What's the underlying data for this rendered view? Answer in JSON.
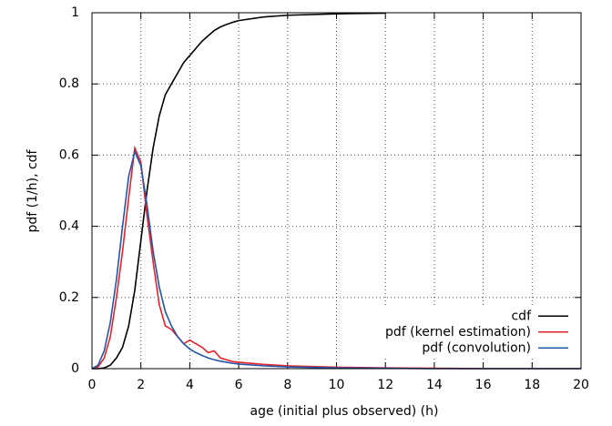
{
  "chart_data": {
    "type": "line",
    "xlabel": "age (initial plus observed) (h)",
    "ylabel": "pdf (1/h), cdf",
    "x": [
      0,
      0.25,
      0.5,
      0.75,
      1,
      1.25,
      1.5,
      1.75,
      2,
      2.25,
      2.5,
      2.75,
      3,
      3.25,
      3.5,
      3.75,
      4,
      4.25,
      4.5,
      4.75,
      5,
      5.25,
      5.5,
      5.75,
      6,
      7,
      8,
      10,
      12,
      14,
      16,
      18,
      20
    ],
    "series": [
      {
        "name": "cdf",
        "color": "#000000",
        "values": [
          0,
          0,
          0.002,
          0.01,
          0.03,
          0.06,
          0.12,
          0.22,
          0.36,
          0.5,
          0.62,
          0.71,
          0.77,
          0.8,
          0.83,
          0.86,
          0.88,
          0.9,
          0.92,
          0.935,
          0.95,
          0.96,
          0.967,
          0.973,
          0.978,
          0.988,
          0.993,
          0.997,
          0.999,
          null,
          null,
          null,
          null
        ]
      },
      {
        "name": "pdf (kernel estimation)",
        "color": "#e8212b",
        "values": [
          0,
          0.005,
          0.03,
          0.09,
          0.2,
          0.33,
          0.48,
          0.62,
          0.58,
          0.43,
          0.3,
          0.18,
          0.12,
          0.11,
          0.09,
          0.07,
          0.08,
          0.07,
          0.06,
          0.045,
          0.05,
          0.03,
          0.025,
          0.02,
          0.018,
          0.012,
          0.008,
          0.004,
          0.002,
          0.001,
          0,
          0,
          0
        ]
      },
      {
        "name": "pdf (convolution)",
        "color": "#2355a8",
        "values": [
          0,
          0.01,
          0.05,
          0.13,
          0.25,
          0.4,
          0.54,
          0.61,
          0.57,
          0.46,
          0.33,
          0.23,
          0.16,
          0.12,
          0.09,
          0.07,
          0.055,
          0.045,
          0.037,
          0.03,
          0.025,
          0.021,
          0.018,
          0.015,
          0.013,
          0.008,
          0.005,
          0.002,
          0.001,
          0,
          0,
          0,
          0
        ]
      }
    ],
    "xlim": [
      0,
      20
    ],
    "xticks": [
      0,
      2,
      4,
      6,
      8,
      10,
      12,
      14,
      16,
      18,
      20
    ],
    "ylim": [
      0,
      1
    ],
    "yticks": [
      0,
      0.2,
      0.4,
      0.6,
      0.8,
      1
    ],
    "grid": true,
    "legend": "lower right"
  }
}
